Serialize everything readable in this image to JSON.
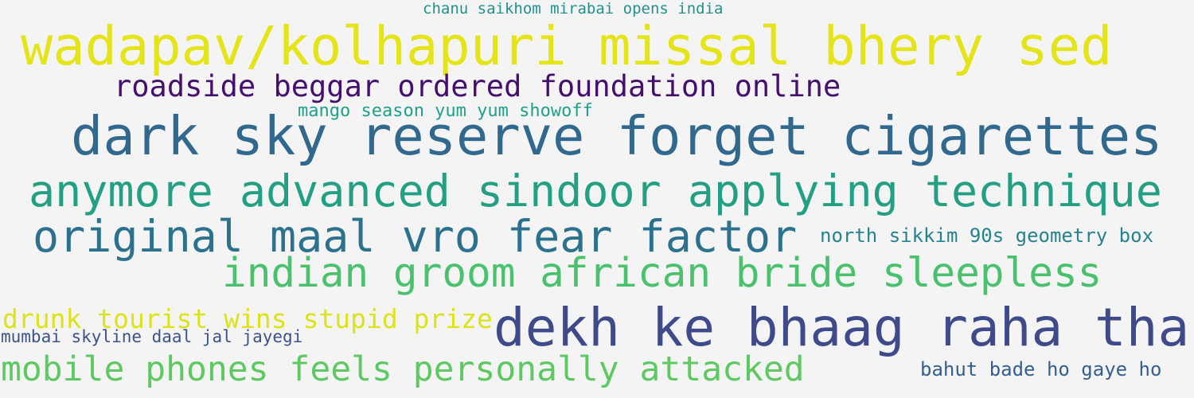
{
  "word_cloud": {
    "phrases": [
      {
        "id": "p1",
        "text": "chanu saikhom mirabai opens india",
        "color": "#21918c"
      },
      {
        "id": "p2",
        "text": "wadapav/kolhapuri missal bhery sed",
        "color": "#e5e419"
      },
      {
        "id": "p3",
        "text": "roadside beggar ordered foundation online",
        "color": "#440f6e"
      },
      {
        "id": "p4",
        "text": "mango season yum yum showoff",
        "color": "#1fa088"
      },
      {
        "id": "p5",
        "text": "dark sky reserve forget cigarettes",
        "color": "#30688e"
      },
      {
        "id": "p6",
        "text": "anymore advanced sindoor applying technique",
        "color": "#23a083"
      },
      {
        "id": "p7",
        "text": "original maal vro fear factor",
        "color": "#2c728e"
      },
      {
        "id": "p8",
        "text": "north sikkim 90s geometry box",
        "color": "#26828e"
      },
      {
        "id": "p9",
        "text": "indian groom african bride sleepless",
        "color": "#4ac16d"
      },
      {
        "id": "p10",
        "text": "drunk tourist wins stupid prize",
        "color": "#dde318"
      },
      {
        "id": "p11",
        "text": "dekh ke bhaag raha tha",
        "color": "#3e4a89"
      },
      {
        "id": "p12",
        "text": "mumbai skyline daal jal jayegi",
        "color": "#3b528b"
      },
      {
        "id": "p13",
        "text": "mobile phones feels personally attacked",
        "color": "#5ec962"
      },
      {
        "id": "p14",
        "text": "bahut bade ho gaye ho",
        "color": "#355f8d"
      }
    ]
  }
}
